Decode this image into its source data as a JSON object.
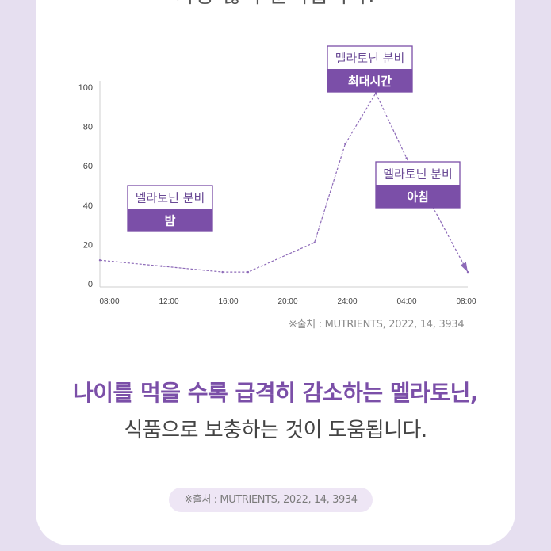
{
  "top_partial_text": "가장 많이 분비됩니다.",
  "chart_data": {
    "type": "line",
    "x": [
      "08:00",
      "12:00",
      "16:00",
      "17:40",
      "22:00",
      "24:00",
      "26:00",
      "28:00",
      "32:00"
    ],
    "values": [
      12,
      9,
      6,
      6,
      21,
      71,
      97,
      64,
      6
    ],
    "xticks": [
      "08:00",
      "12:00",
      "16:00",
      "20:00",
      "24:00",
      "04:00",
      "08:00"
    ],
    "yticks": [
      0,
      20,
      40,
      60,
      80,
      100
    ],
    "ylim": [
      0,
      100
    ],
    "line_color": "#8d6ab8",
    "line_style": "dashed",
    "annotations": [
      {
        "title": "멜라토닌 분비",
        "label": "밤"
      },
      {
        "title": "멜라토닌 분비",
        "label": "최대시간"
      },
      {
        "title": "멜라토닌 분비",
        "label": "아침"
      }
    ],
    "source": "※출처 : MUTRIENTS, 2022, 14, 3934"
  },
  "headline": "나이를 먹을 수록 급격히 감소하는 멜라토닌,",
  "subline": "식품으로 보충하는 것이 도움됩니다.",
  "source_pill": "※출처 : MUTRIENTS, 2022, 14, 3934",
  "colors": {
    "accent": "#7b4fa8",
    "background": "#e6dff0",
    "pill": "#eee6f5"
  }
}
